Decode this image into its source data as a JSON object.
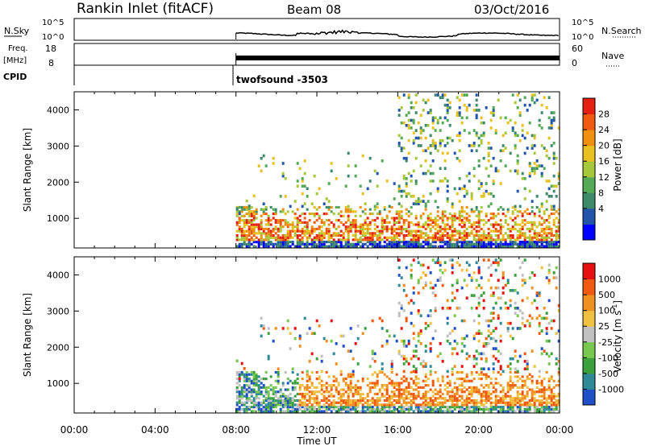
{
  "header": {
    "station": "Rankin Inlet (fitACF)",
    "beam": "Beam 08",
    "date": "03/Oct/2016"
  },
  "top_panels": {
    "nsky_label": "N.Sky",
    "nsky_ticks": [
      "10^5",
      "10^0"
    ],
    "nsearch_label": "N.Search",
    "nsearch_ticks": [
      "10^5",
      "10^0"
    ],
    "freq_label": "Freq.",
    "freq_unit": "[MHz]",
    "freq_ticks": [
      "18",
      "8"
    ],
    "nave_label": "Nave",
    "nave_ticks": [
      "60",
      "0"
    ],
    "cpid_label": "CPID",
    "cpid_value": "twofsound -3503"
  },
  "chart_data": [
    {
      "type": "heatmap",
      "name": "power",
      "ylabel": "Slant Range [km]",
      "ylim": [
        180,
        4500
      ],
      "yticks": [
        1000,
        2000,
        3000,
        4000
      ],
      "xlim": [
        0,
        24
      ],
      "data_start_hour": 8,
      "colorbar_label": "Power [dB]",
      "colorbar_ticks": [
        "28",
        "24",
        "20",
        "16",
        "12",
        "8",
        "4"
      ],
      "colors": [
        "#0000ff",
        "#2255aa",
        "#3c8a6a",
        "#55aa55",
        "#a8c83c",
        "#e8c020",
        "#f09010",
        "#f05a10",
        "#e62010"
      ]
    },
    {
      "type": "heatmap",
      "name": "velocity",
      "ylabel": "Slant Range [km]",
      "ylim": [
        180,
        4500
      ],
      "yticks": [
        1000,
        2000,
        3000,
        4000
      ],
      "xlim": [
        0,
        24
      ],
      "data_start_hour": 8,
      "colorbar_label": "Velocity [m s-1]",
      "colorbar_unit_superscript": "-1",
      "colorbar_ticks": [
        "1000",
        "500",
        "100",
        "25",
        "-25",
        "-100",
        "-500",
        "-1000"
      ],
      "colors": [
        "#2050c8",
        "#2e8a96",
        "#3ca03c",
        "#78c850",
        "#c0c0c0",
        "#f0c040",
        "#f09020",
        "#f05a10",
        "#e61010"
      ]
    }
  ],
  "x_axis": {
    "ticks": [
      "00:00",
      "04:00",
      "08:00",
      "12:00",
      "16:00",
      "20:00",
      "00:00"
    ],
    "label": "Time UT"
  }
}
